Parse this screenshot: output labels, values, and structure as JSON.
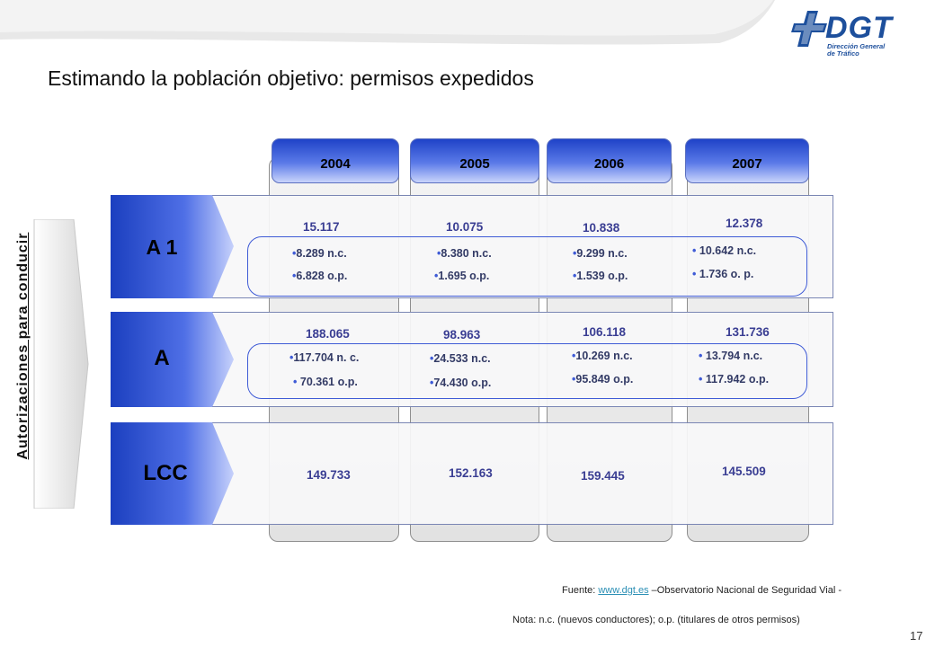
{
  "title": "Estimando la población objetivo: permisos expedidos",
  "logo": {
    "text": "DGT",
    "subtitle_line1": "Dirección General",
    "subtitle_line2": "de Tráfico",
    "color": "#1d4f9c"
  },
  "side_label": "Autorizaciones para conducir",
  "years": [
    "2004",
    "2005",
    "2006",
    "2007"
  ],
  "rows": {
    "a1": {
      "label": "A 1",
      "totals": [
        "15.117",
        "10.075",
        "10.838",
        "12.378"
      ],
      "nc": [
        "8.289 n.c.",
        "8.380 n.c.",
        "9.299 n.c.",
        "10.642 n.c."
      ],
      "op": [
        "6.828 o.p.",
        "1.695 o.p.",
        "1.539 o.p.",
        "1.736 o. p."
      ]
    },
    "a": {
      "label": "A",
      "totals": [
        "188.065",
        "98.963",
        "106.118",
        "131.736"
      ],
      "nc": [
        "117.704 n. c.",
        "24.533 n.c.",
        "10.269 n.c.",
        "13.794 n.c."
      ],
      "op": [
        "70.361 o.p.",
        "74.430 o.p.",
        "95.849 o.p.",
        "117.942 o.p."
      ]
    },
    "lcc": {
      "label": "LCC",
      "totals": [
        "149.733",
        "152.163",
        "159.445",
        "145.509"
      ]
    }
  },
  "bullet": "•",
  "footer": {
    "source_prefix": "Fuente: ",
    "source_link": "www.dgt.es",
    "source_suffix": " –Observatorio Nacional de Seguridad Vial -",
    "note": "Nota: n.c. (nuevos conductores); o.p. (titulares de otros permisos)"
  },
  "page_number": "17",
  "colors": {
    "accent_blue": "#1f43c8",
    "value_blue": "#3a3e93",
    "brand_blue": "#1d4f9c"
  }
}
